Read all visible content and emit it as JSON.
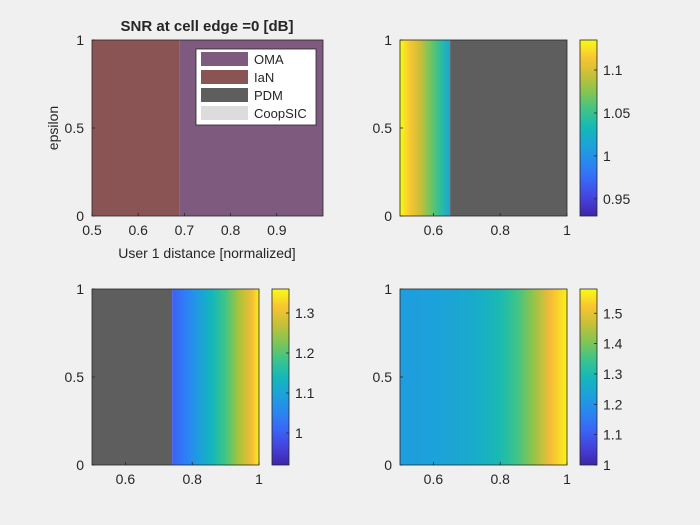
{
  "colors": {
    "figure_bg": "#f0f0f0",
    "OMA": "#7e5a7e",
    "IaN": "#8b5454",
    "PDM": "#5e5e5e",
    "CoopSIC": "#dcdcdc",
    "axis": "#262626"
  },
  "chart_data": [
    {
      "type": "heatmap",
      "title": "SNR at cell edge =0 [dB]",
      "xlabel": "User 1 distance [normalized]",
      "ylabel": "epsilon",
      "xlim": [
        0.5,
        1.0
      ],
      "ylim": [
        0,
        1
      ],
      "xticks": [
        "0.5",
        "0.6",
        "0.7",
        "0.8",
        "0.9"
      ],
      "xtick_values": [
        0.5,
        0.6,
        0.7,
        0.8,
        0.9
      ],
      "yticks": [
        "0",
        "0.5",
        "1"
      ],
      "ytick_values": [
        0,
        0.5,
        1
      ],
      "legend": {
        "position": "top-right",
        "entries": [
          "OMA",
          "IaN",
          "PDM",
          "CoopSIC"
        ]
      },
      "regions": [
        {
          "scheme": "IaN",
          "x_from": 0.5,
          "x_to": 0.69
        },
        {
          "scheme": "OMA",
          "x_from": 0.69,
          "x_to": 1.0
        }
      ]
    },
    {
      "type": "heatmap",
      "title": "",
      "xlim": [
        0.5,
        1.0
      ],
      "ylim": [
        0,
        1
      ],
      "xticks": [
        "0.6",
        "0.8",
        "1"
      ],
      "xtick_values": [
        0.6,
        0.8,
        1.0
      ],
      "yticks": [
        "0",
        "0.5",
        "1"
      ],
      "ytick_values": [
        0,
        0.5,
        1
      ],
      "colormap": "parula",
      "clim": [
        0.93,
        1.135
      ],
      "colorbar_ticks": [
        "0.95",
        "1",
        "1.05",
        "1.1"
      ],
      "colorbar_tick_values": [
        0.95,
        1.0,
        1.05,
        1.1
      ],
      "x_values": [
        0.5,
        0.53,
        0.56,
        0.59,
        0.62,
        0.65
      ],
      "gain": [
        1.135,
        1.115,
        1.095,
        1.07,
        1.045,
        1.015
      ],
      "pdm_region": {
        "x_from": 0.65,
        "x_to": 1.0
      }
    },
    {
      "type": "heatmap",
      "title": "",
      "xlim": [
        0.5,
        1.0
      ],
      "ylim": [
        0,
        1
      ],
      "xticks": [
        "0.6",
        "0.8",
        "1"
      ],
      "xtick_values": [
        0.6,
        0.8,
        1.0
      ],
      "yticks": [
        "0",
        "0.5",
        "1"
      ],
      "ytick_values": [
        0,
        0.5,
        1
      ],
      "colormap": "parula",
      "clim": [
        0.92,
        1.36
      ],
      "colorbar_ticks": [
        "1",
        "1.1",
        "1.2",
        "1.3"
      ],
      "colorbar_tick_values": [
        1.0,
        1.1,
        1.2,
        1.3
      ],
      "pdm_region": {
        "x_from": 0.5,
        "x_to": 0.74
      },
      "x_values": [
        0.74,
        0.78,
        0.82,
        0.86,
        0.9,
        0.94,
        0.98,
        1.0
      ],
      "gain": [
        1.0,
        1.04,
        1.09,
        1.14,
        1.19,
        1.25,
        1.31,
        1.35
      ]
    },
    {
      "type": "heatmap",
      "title": "",
      "xlim": [
        0.5,
        1.0
      ],
      "ylim": [
        0,
        1
      ],
      "xticks": [
        "0.6",
        "0.8",
        "1"
      ],
      "xtick_values": [
        0.6,
        0.8,
        1.0
      ],
      "yticks": [
        "0",
        "0.5",
        "1"
      ],
      "ytick_values": [
        0,
        0.5,
        1
      ],
      "colormap": "parula",
      "clim": [
        1.0,
        1.58
      ],
      "colorbar_ticks": [
        "1",
        "1.1",
        "1.2",
        "1.3",
        "1.4",
        "1.5"
      ],
      "colorbar_tick_values": [
        1.0,
        1.1,
        1.2,
        1.3,
        1.4,
        1.5
      ],
      "x_values": [
        0.5,
        0.6,
        0.7,
        0.75,
        0.8,
        0.85,
        0.9,
        0.95,
        1.0
      ],
      "gain": [
        1.22,
        1.23,
        1.25,
        1.27,
        1.3,
        1.35,
        1.42,
        1.51,
        1.57
      ]
    }
  ]
}
